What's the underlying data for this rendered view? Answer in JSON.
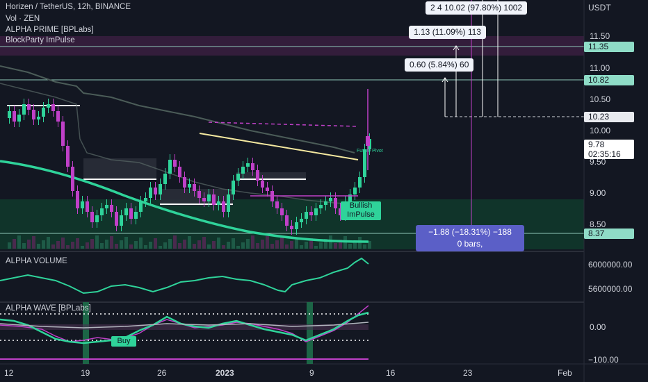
{
  "header": {
    "symbol": "Horizen / TetherUS, 12h, BINANCE",
    "volume_indicator": "Vol · ZEN",
    "indicator_1": "ALPHA PRIME [BPLabs]",
    "indicator_2": "BlockParty ImPulse"
  },
  "price_axis": {
    "currency": "USDT",
    "ticks": [
      "11.50",
      "11.00",
      "10.50",
      "10.00",
      "9.50",
      "9.00",
      "8.50"
    ],
    "tags": {
      "level_1135": "11.35",
      "level_1082": "10.82",
      "level_1023": "10.23",
      "current_price": "9.78",
      "countdown": "02:35:16",
      "level_837": "8.37"
    }
  },
  "callouts": {
    "top": "2 4 10.02 (97.80%) 1002",
    "mid": "1.13 (11.09%) 113",
    "low": "0.60 (5.84%) 60"
  },
  "measure": {
    "line1": "−1.88 (−18.31%) −188",
    "line2": "0 bars,"
  },
  "signals": {
    "bullish_line1": "Bullish",
    "bullish_line2": "ImPulse",
    "future_pivot": "Future Pivot",
    "buy": "Buy"
  },
  "volume_pane": {
    "title": "ALPHA VOLUME",
    "ticks": [
      "6000000.00",
      "5600000.00"
    ]
  },
  "wave_pane": {
    "title": "ALPHA WAVE [BPLabs]",
    "ticks": [
      "0.00",
      "−100.00"
    ]
  },
  "time_axis": {
    "labels": [
      "12",
      "19",
      "26",
      "2023",
      "9",
      "16",
      "23",
      "Feb"
    ]
  },
  "colors": {
    "background": "#131722",
    "up": "#2fd39a",
    "down": "#c040c8",
    "ma": "#2fd39a",
    "trendline": "#f5e9a0",
    "measure": "#5b5fc7"
  }
}
